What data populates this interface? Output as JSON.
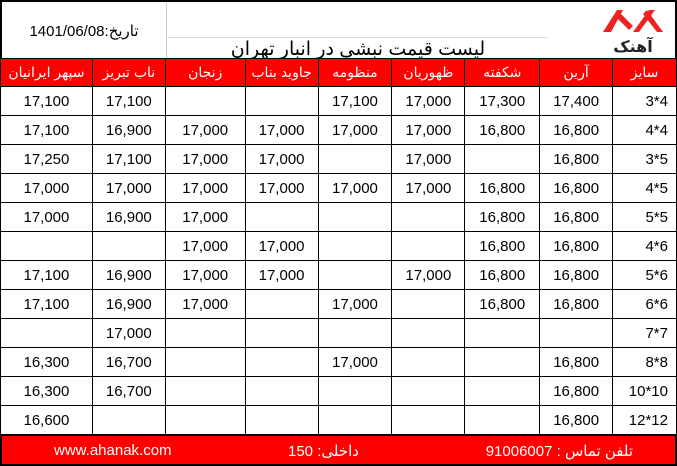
{
  "header": {
    "date": "تاریخ:1401/06/08",
    "title": "لیست قیمت نبشی در انبار تهران",
    "logo_text": "آهنک",
    "accent": "#ff0000"
  },
  "columns": [
    "سایز",
    "آرین",
    "شکفته",
    "ظهوریان",
    "منظومه",
    "جاوید بناب",
    "زنجان",
    "ناب تبریز",
    "سپهر ایرانیان"
  ],
  "rows": [
    [
      "3*4",
      "17,400",
      "17,300",
      "17,000",
      "17,100",
      "",
      "",
      "17,100",
      "17,100"
    ],
    [
      "4*4",
      "16,800",
      "16,800",
      "17,000",
      "17,000",
      "17,000",
      "17,000",
      "16,900",
      "17,100"
    ],
    [
      "3*5",
      "16,800",
      "",
      "17,000",
      "",
      "17,000",
      "17,000",
      "17,100",
      "17,250"
    ],
    [
      "4*5",
      "16,800",
      "16,800",
      "17,000",
      "17,000",
      "17,000",
      "17,000",
      "17,000",
      "17,000"
    ],
    [
      "5*5",
      "16,800",
      "16,800",
      "",
      "",
      "",
      "17,000",
      "16,900",
      "17,000"
    ],
    [
      "4*6",
      "16,800",
      "16,800",
      "",
      "",
      "17,000",
      "17,000",
      "",
      ""
    ],
    [
      "5*6",
      "16,800",
      "16,800",
      "17,000",
      "",
      "17,000",
      "17,000",
      "16,900",
      "17,100"
    ],
    [
      "6*6",
      "16,800",
      "16,800",
      "",
      "17,000",
      "",
      "17,000",
      "16,900",
      "17,100"
    ],
    [
      "7*7",
      "",
      "",
      "",
      "",
      "",
      "",
      "17,000",
      ""
    ],
    [
      "8*8",
      "16,800",
      "",
      "",
      "17,000",
      "",
      "",
      "16,700",
      "16,300"
    ],
    [
      "10*10",
      "16,800",
      "",
      "",
      "",
      "",
      "",
      "16,700",
      "16,300"
    ],
    [
      "12*12",
      "16,800",
      "",
      "",
      "",
      "",
      "",
      "",
      "16,600"
    ]
  ],
  "footer": {
    "phone": "تلفن تماس : 91006007",
    "ext": "داخلی: 150",
    "website": "www.ahanak.com"
  }
}
